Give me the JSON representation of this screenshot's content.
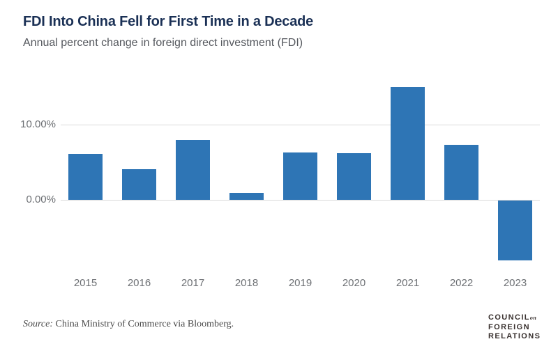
{
  "header": {
    "title": "FDI Into China Fell for First Time in a Decade",
    "subtitle": "Annual percent change in foreign direct investment (FDI)"
  },
  "chart_data": {
    "type": "bar",
    "title": "FDI Into China Fell for First Time in a Decade",
    "subtitle": "Annual percent change in foreign direct investment (FDI)",
    "categories": [
      "2015",
      "2016",
      "2017",
      "2018",
      "2019",
      "2020",
      "2021",
      "2022",
      "2023"
    ],
    "values": [
      6.1,
      4.1,
      8.0,
      0.9,
      6.3,
      6.2,
      15.0,
      7.3,
      -8.0
    ],
    "unit": "percent",
    "xlabel": "",
    "ylabel": "",
    "yticks": [
      {
        "label": "10.00%",
        "value": 10
      },
      {
        "label": "0.00%",
        "value": 0
      }
    ],
    "ylim": [
      -9.5,
      16.5
    ],
    "grid": "horizontal-only",
    "legend": "none",
    "bar_color": "#2e75b5"
  },
  "footer": {
    "source_label": "Source:",
    "source_text": " China Ministry of Commerce via Bloomberg."
  },
  "logo": {
    "line1": "COUNCIL",
    "line1_connector": "on",
    "line2": "FOREIGN",
    "line3": "RELATIONS"
  },
  "colors": {
    "title": "#1a3055",
    "subtitle": "#55585e",
    "axis_label": "#6d7074",
    "gridline": "#d9d9d9",
    "bar": "#2e75b5",
    "source_text": "#4a4a4a",
    "logo": "#38302e"
  }
}
